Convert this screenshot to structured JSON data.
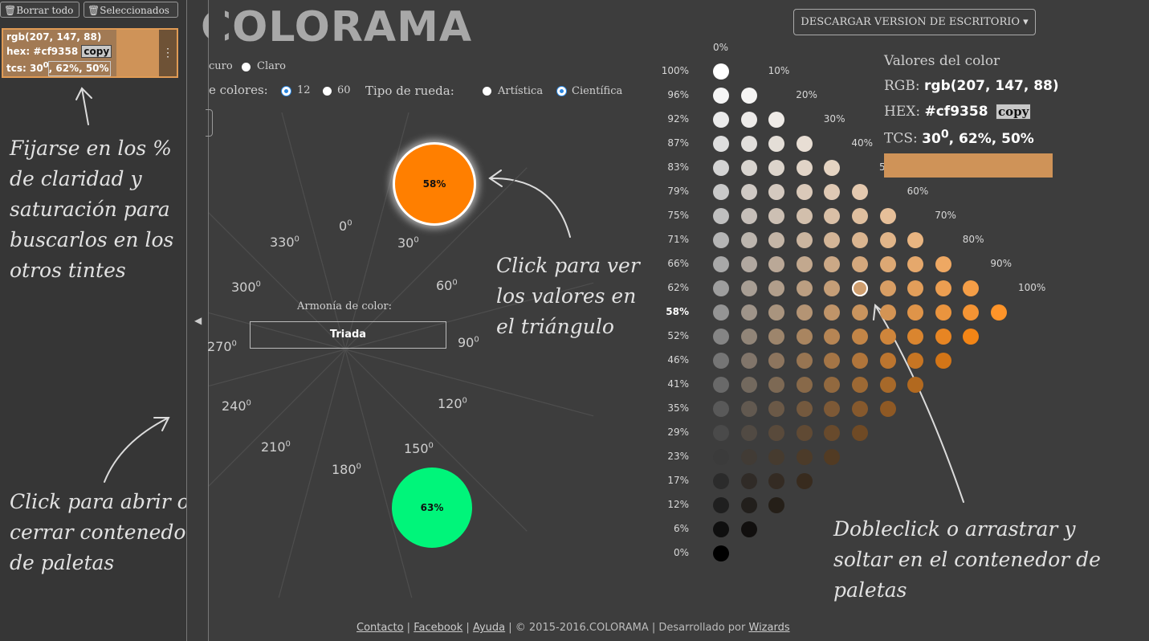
{
  "sidebar": {
    "clear_all": "Borrar todo",
    "selected": "Seleccionados",
    "swatch": {
      "rgb": "rgb(207, 147, 88)",
      "hex": "hex: #cf9358",
      "copy": "copy",
      "tcs_pre": "tcs: 30",
      "tcs_post": ", 62%, 50%",
      "color": "#cf9358"
    }
  },
  "annotations": {
    "a1": [
      "Fijarse en los %",
      "de claridad y",
      "saturación para",
      "buscarlos en los",
      "otros tintes"
    ],
    "a2": [
      "Click para abrir o",
      "cerrar contenedor",
      "de paletas"
    ],
    "a3": [
      "Click para ver",
      "los valores en",
      "el triángulo"
    ],
    "a4": [
      "Dobleclick o arrastrar y",
      "soltar en el contenedor de",
      "paletas"
    ]
  },
  "header": {
    "title": "COLORAMA",
    "download": "DESCARGAR VERSION DE ESCRITORIO ▾",
    "theme_dark": "curo",
    "theme_light": "Claro",
    "num_colors_label": "e colores:",
    "opt12": "12",
    "opt60": "60",
    "wheel_type_label": "Tipo de rueda:",
    "artistic": "Artística",
    "scientific": "Científica"
  },
  "wheel": {
    "degrees": [
      "0",
      "30",
      "60",
      "90",
      "120",
      "150",
      "180",
      "210",
      "240",
      "270",
      "300",
      "330"
    ],
    "harmony_label": "Armonía de color:",
    "harmony_value": "Triada",
    "circle_top": {
      "label": "58%",
      "color": "#ff7f00"
    },
    "circle_bottom": {
      "label": "63%",
      "color": "#00f57a"
    }
  },
  "grid": {
    "row_labels": [
      "100%",
      "96%",
      "92%",
      "87%",
      "83%",
      "79%",
      "75%",
      "71%",
      "66%",
      "62%",
      "58%",
      "52%",
      "46%",
      "41%",
      "35%",
      "29%",
      "23%",
      "17%",
      "12%",
      "6%",
      "0%"
    ],
    "col_labels": [
      "0%",
      "10%",
      "20%",
      "30%",
      "40%",
      "50%",
      "60%",
      "70%",
      "80%",
      "90%",
      "100%"
    ],
    "hue": 30,
    "selected": {
      "row": "62%",
      "col": "50%"
    }
  },
  "color_values": {
    "title": "Valores del color",
    "rgb_label": "RGB:",
    "rgb": "rgb(207, 147, 88)",
    "hex_label": "HEX:",
    "hex": "#cf9358",
    "copy": "copy",
    "tcs_label": "TCS:",
    "tcs_pre": "30",
    "tcs_post": ", 62%, 50%",
    "color": "#cf9358"
  },
  "footer": {
    "contact": "Contacto",
    "facebook": "Facebook",
    "help": "Ayuda",
    "copyright": "© 2015-2016.COLORAMA",
    "developed": "Desarrollado por",
    "wizards": "Wizards"
  }
}
